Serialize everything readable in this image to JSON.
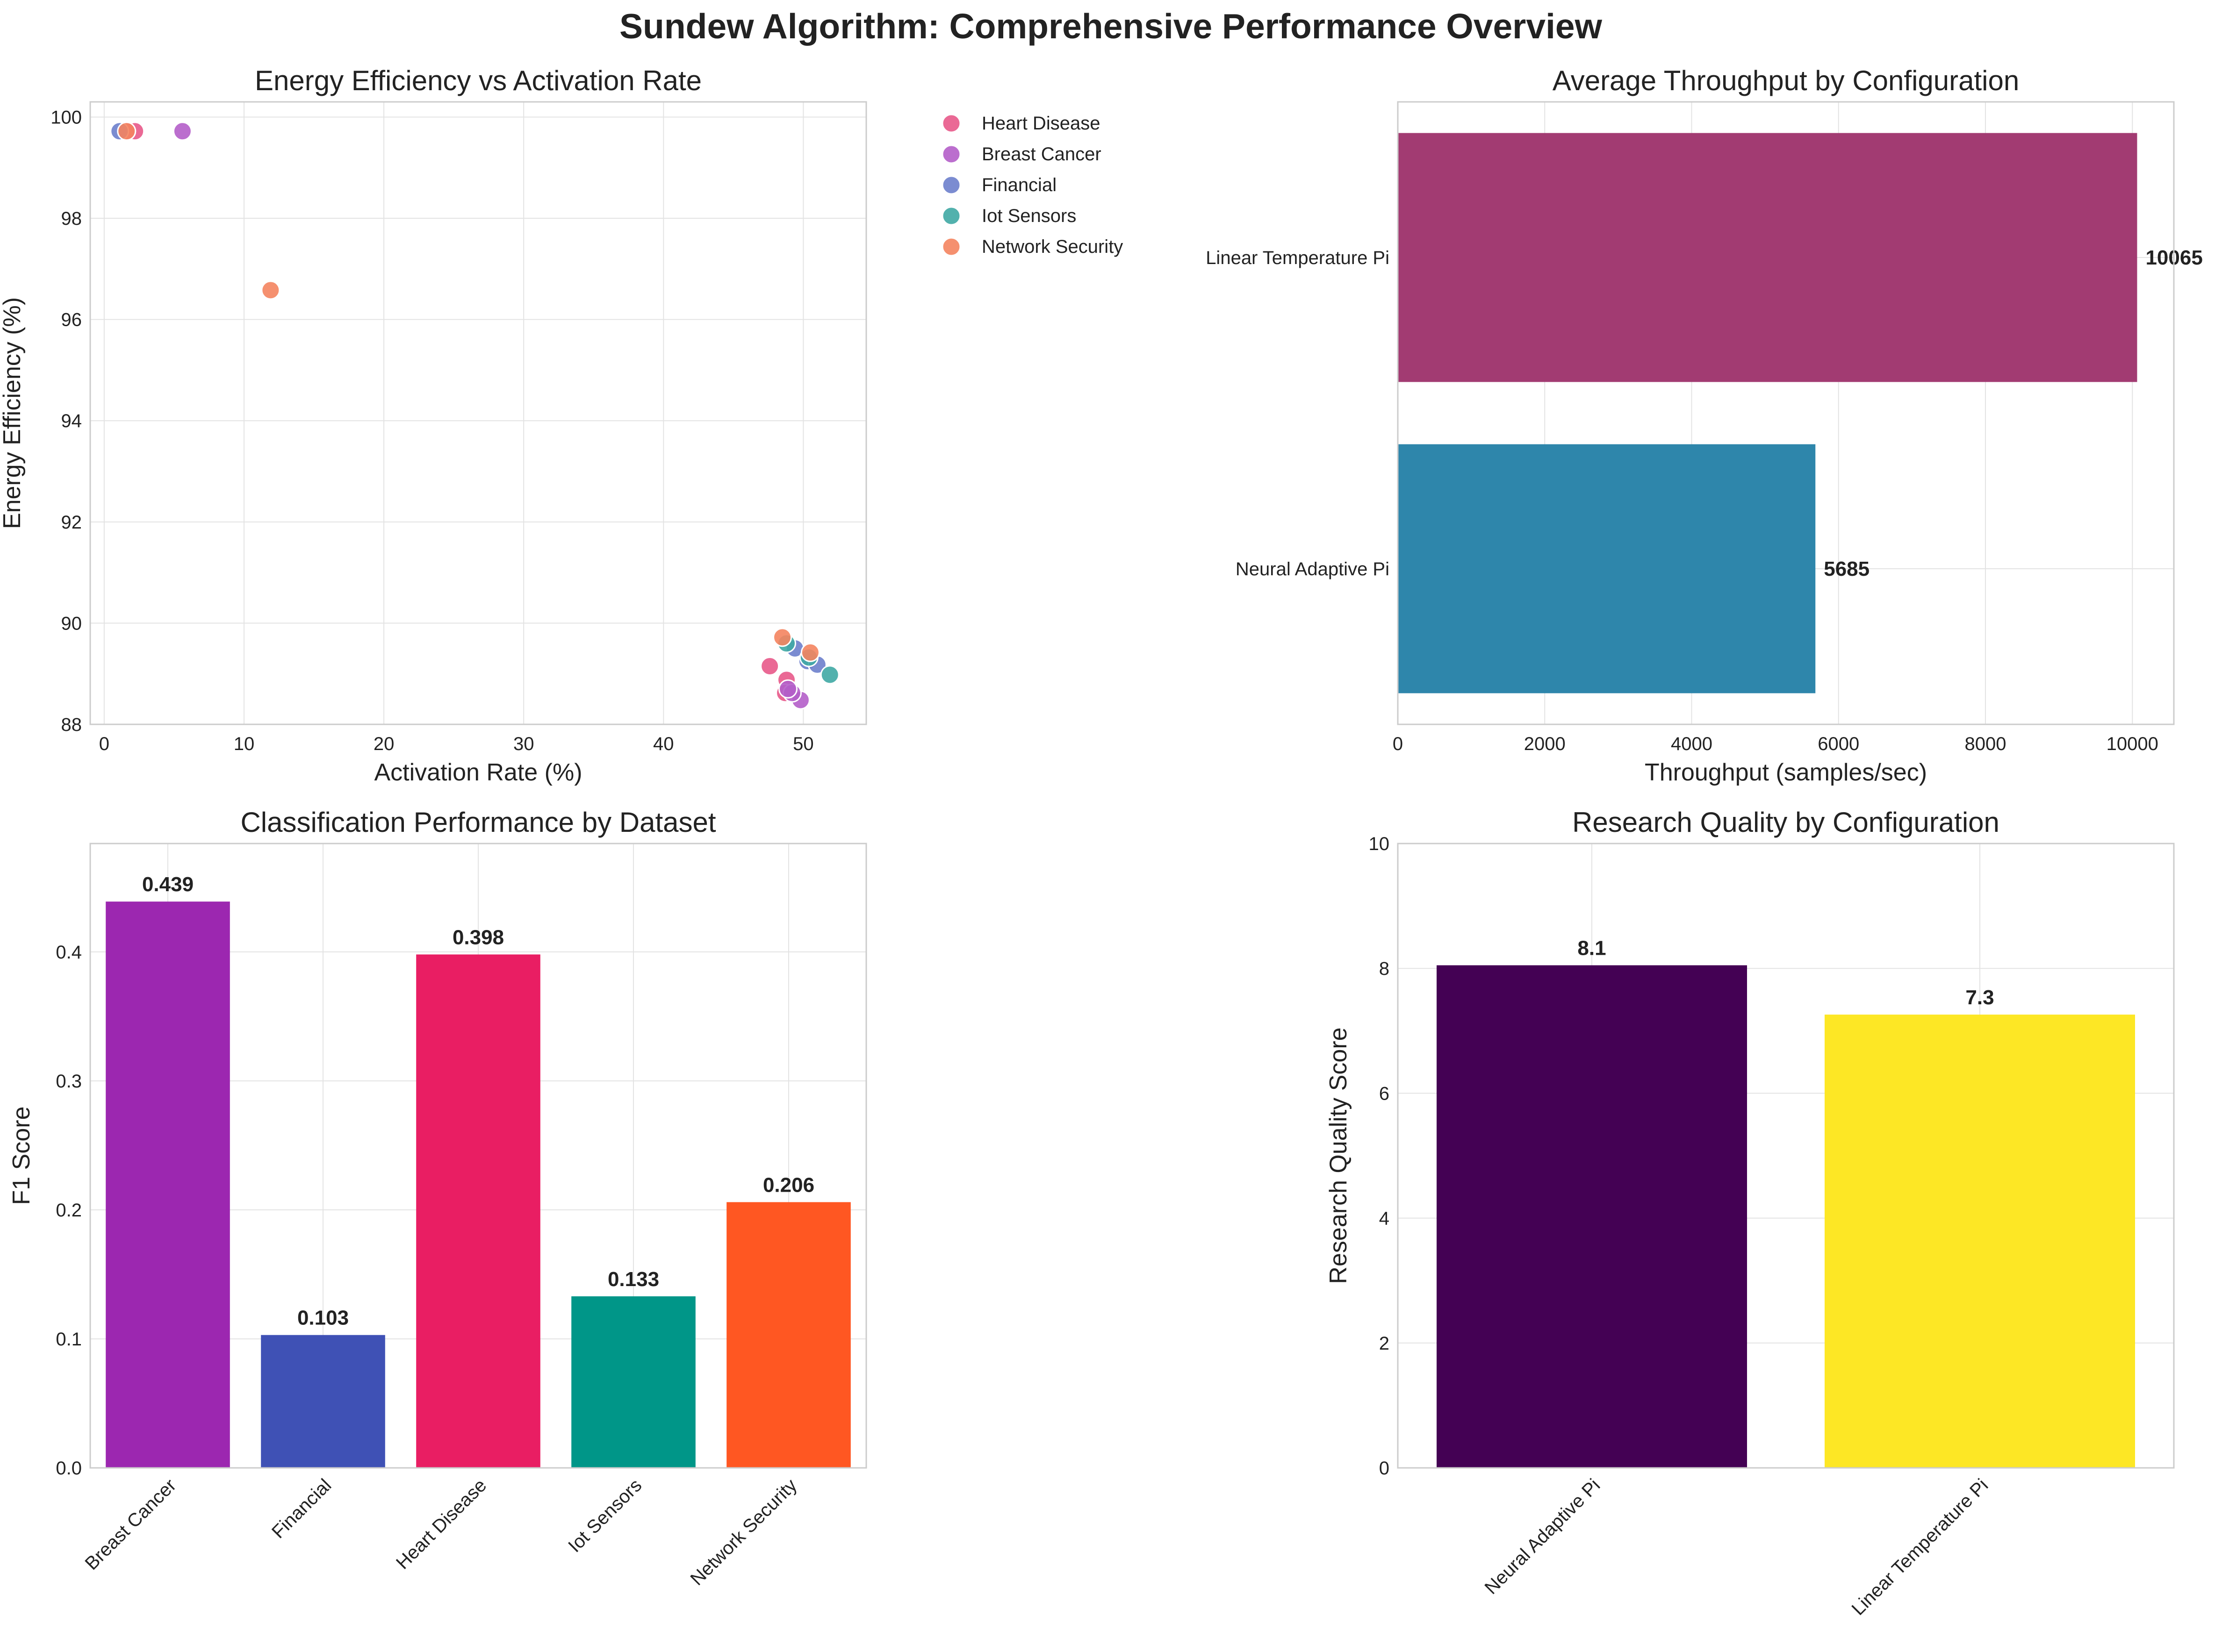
{
  "figure": {
    "suptitle": "Sundew Algorithm: Comprehensive Performance Overview"
  },
  "chart_data": [
    {
      "type": "scatter",
      "title": "Energy Efficiency vs Activation Rate",
      "xlabel": "Activation Rate (%)",
      "ylabel": "Energy Efficiency (%)",
      "xlim": [
        -1,
        54.5
      ],
      "ylim": [
        88,
        100.3
      ],
      "xticks": [
        0,
        10,
        20,
        30,
        40,
        50
      ],
      "yticks": [
        88,
        90,
        92,
        94,
        96,
        98,
        100
      ],
      "grid": true,
      "legend_position": "outside-right",
      "series": [
        {
          "name": "Heart Disease",
          "color": "#e8598a",
          "points": [
            [
              2.2,
              99.72
            ],
            [
              1.6,
              99.72
            ],
            [
              47.6,
              89.15
            ],
            [
              48.8,
              88.88
            ],
            [
              48.7,
              88.62
            ]
          ]
        },
        {
          "name": "Breast Cancer",
          "color": "#b45ec9",
          "points": [
            [
              5.6,
              99.72
            ],
            [
              49.8,
              88.48
            ],
            [
              49.2,
              88.62
            ],
            [
              48.9,
              88.7
            ]
          ]
        },
        {
          "name": "Financial",
          "color": "#6d80cc",
          "points": [
            [
              1.1,
              99.72
            ],
            [
              49.4,
              89.5
            ],
            [
              50.3,
              89.25
            ],
            [
              51.0,
              89.18
            ]
          ]
        },
        {
          "name": "Iot Sensors",
          "color": "#3fa8a4",
          "points": [
            [
              51.9,
              88.98
            ],
            [
              48.8,
              89.6
            ],
            [
              50.4,
              89.32
            ]
          ]
        },
        {
          "name": "Network Security",
          "color": "#f4845f",
          "points": [
            [
              1.6,
              99.72
            ],
            [
              11.9,
              96.58
            ],
            [
              48.5,
              89.72
            ],
            [
              50.5,
              89.42
            ]
          ]
        }
      ]
    },
    {
      "type": "bar",
      "orientation": "horizontal",
      "title": "Average Throughput by Configuration",
      "xlabel": "Throughput (samples/sec)",
      "ylabel": "",
      "categories": [
        "Linear Temperature Pi",
        "Neural Adaptive Pi"
      ],
      "values": [
        10065,
        5685
      ],
      "value_labels": [
        "10065",
        "5685"
      ],
      "colors": [
        "#a23b72",
        "#2e86ab"
      ],
      "xlim": [
        0,
        10565
      ],
      "xticks": [
        0,
        2000,
        4000,
        6000,
        8000,
        10000
      ],
      "grid": true
    },
    {
      "type": "bar",
      "title": "Classification Performance by Dataset",
      "xlabel": "",
      "ylabel": "F1 Score",
      "categories": [
        "Breast Cancer",
        "Financial",
        "Heart Disease",
        "Iot Sensors",
        "Network Security"
      ],
      "values": [
        0.439,
        0.103,
        0.398,
        0.133,
        0.206
      ],
      "value_labels": [
        "0.439",
        "0.103",
        "0.398",
        "0.133",
        "0.206"
      ],
      "colors": [
        "#9c27b0",
        "#3f51b5",
        "#e91e63",
        "#009688",
        "#ff5722"
      ],
      "ylim": [
        0,
        0.484
      ],
      "yticks": [
        0.0,
        0.1,
        0.2,
        0.3,
        0.4
      ],
      "ytick_labels": [
        "0.0",
        "0.1",
        "0.2",
        "0.3",
        "0.4"
      ],
      "grid": true
    },
    {
      "type": "bar",
      "title": "Research Quality by Configuration",
      "xlabel": "",
      "ylabel": "Research Quality Score",
      "categories": [
        "Neural Adaptive Pi",
        "Linear Temperature Pi"
      ],
      "values": [
        8.05,
        7.26
      ],
      "value_labels": [
        "8.1",
        "7.3"
      ],
      "colors": [
        "#440154",
        "#fde725"
      ],
      "ylim": [
        0,
        10
      ],
      "yticks": [
        0,
        2,
        4,
        6,
        8,
        10
      ],
      "grid": true
    }
  ]
}
